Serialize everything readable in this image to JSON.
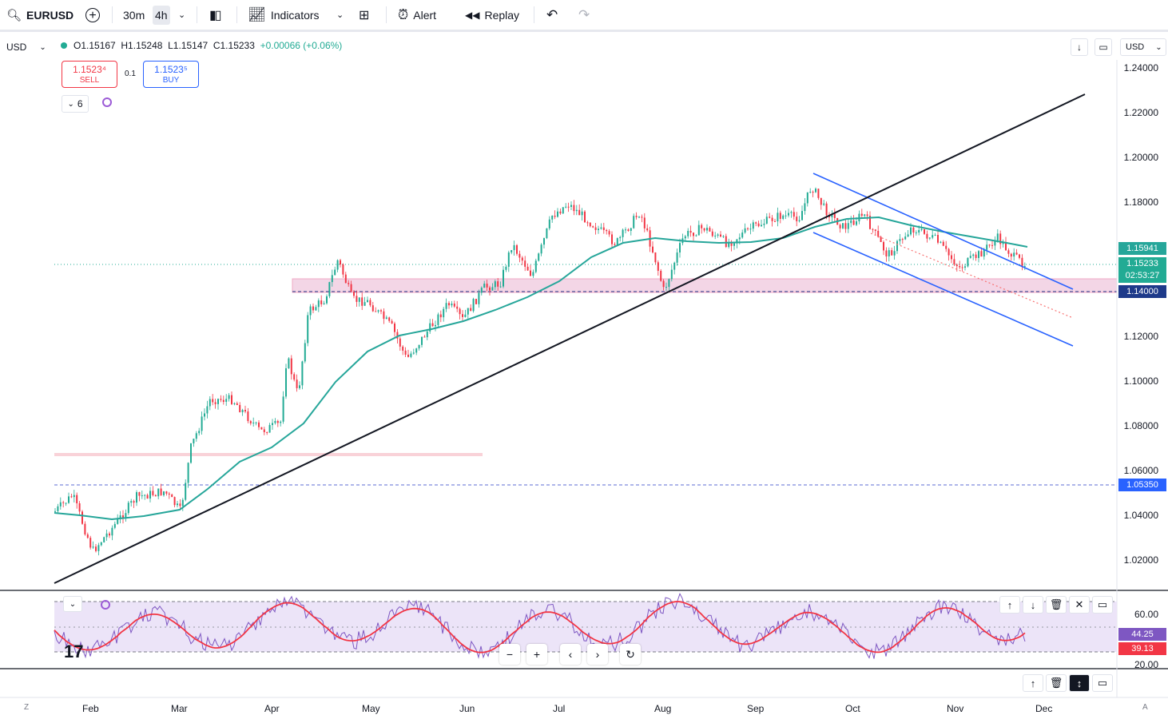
{
  "toolbar": {
    "symbol": "EURUSD",
    "timeframes": [
      "30m",
      "4h"
    ],
    "indicators_label": "Indicators",
    "alert_label": "Alert",
    "replay_label": "Replay"
  },
  "legend": {
    "currency": "USD",
    "open": "O1.15167",
    "high": "H1.15248",
    "low": "L1.15147",
    "close": "C1.15233",
    "change": "+0.00066 (+0.06%)"
  },
  "trade": {
    "sell_price": "1.1523⁴",
    "sell_label": "SELL",
    "spread": "0.1",
    "buy_price": "1.1523⁵",
    "buy_label": "BUY"
  },
  "indicator_count": "6",
  "axis": {
    "currency": "USD",
    "ticks": [
      "1.24000",
      "1.22000",
      "1.20000",
      "1.18000",
      "1.16000",
      "1.14000",
      "1.12000",
      "1.10000",
      "1.08000",
      "1.06000",
      "1.04000",
      "1.02000"
    ]
  },
  "price_labels": {
    "ma": "1.15941",
    "last": "1.15233",
    "countdown": "02:53:27",
    "line1": "1.14000",
    "line2": "1.05350"
  },
  "rsi": {
    "ticks": [
      "60.00",
      "20.00"
    ],
    "value": "44.25",
    "ma_value": "39.13"
  },
  "dates": [
    "Feb",
    "Mar",
    "Apr",
    "May",
    "Jun",
    "Jul",
    "Aug",
    "Sep",
    "Oct",
    "Nov",
    "Dec"
  ],
  "bottom": {
    "left": "Z",
    "right": "A"
  },
  "colors": {
    "up": "#22ab94",
    "down": "#f23645",
    "ma": "#26a69a",
    "channel": "#2962ff",
    "trendline": "#131722",
    "zone": "#f3d6e6",
    "rsi": "#7e57c2",
    "rsi_ma": "#f23645"
  }
}
